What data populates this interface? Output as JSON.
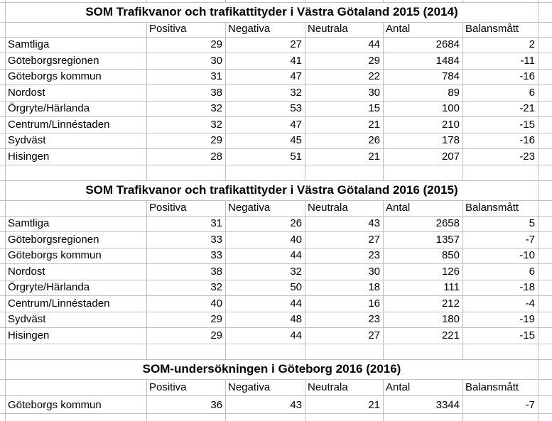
{
  "colors": {
    "background": "#ffffff",
    "gridline": "#c0c0c0",
    "text": "#000000"
  },
  "sheet": {
    "tables": [
      {
        "title": "SOM Trafikvanor och trafikattityder i Västra Götaland 2015 (2014)",
        "columns": [
          "Positiva",
          "Negativa",
          "Neutrala",
          "Antal",
          "Balansmått"
        ],
        "rows": [
          {
            "label": "Samtliga",
            "values": [
              29,
              27,
              44,
              2684,
              2
            ]
          },
          {
            "label": "Göteborgsregionen",
            "values": [
              30,
              41,
              29,
              1484,
              -11
            ]
          },
          {
            "label": "Göteborgs kommun",
            "values": [
              31,
              47,
              22,
              784,
              -16
            ]
          },
          {
            "label": "Nordost",
            "values": [
              38,
              32,
              30,
              89,
              6
            ]
          },
          {
            "label": "Örgryte/Härlanda",
            "values": [
              32,
              53,
              15,
              100,
              -21
            ]
          },
          {
            "label": "Centrum/Linnéstaden",
            "values": [
              32,
              47,
              21,
              210,
              -15
            ]
          },
          {
            "label": "Sydväst",
            "values": [
              29,
              45,
              26,
              178,
              -16
            ]
          },
          {
            "label": "Hisingen",
            "values": [
              28,
              51,
              21,
              207,
              -23
            ]
          }
        ]
      },
      {
        "title": "SOM Trafikvanor och trafikattityder i Västra Götaland 2016 (2015)",
        "columns": [
          "Positiva",
          "Negativa",
          "Neutrala",
          "Antal",
          "Balansmått"
        ],
        "rows": [
          {
            "label": "Samtliga",
            "values": [
              31,
              26,
              43,
              2658,
              5
            ]
          },
          {
            "label": "Göteborgsregionen",
            "values": [
              33,
              40,
              27,
              1357,
              -7
            ]
          },
          {
            "label": "Göteborgs kommun",
            "values": [
              33,
              44,
              23,
              850,
              -10
            ]
          },
          {
            "label": "Nordost",
            "values": [
              38,
              32,
              30,
              126,
              6
            ]
          },
          {
            "label": "Örgryte/Härlanda",
            "values": [
              32,
              50,
              18,
              111,
              -18
            ]
          },
          {
            "label": "Centrum/Linnéstaden",
            "values": [
              40,
              44,
              16,
              212,
              -4
            ]
          },
          {
            "label": "Sydväst",
            "values": [
              29,
              48,
              23,
              180,
              -19
            ]
          },
          {
            "label": "Hisingen",
            "values": [
              29,
              44,
              27,
              221,
              -15
            ]
          }
        ]
      },
      {
        "title": "SOM-undersökningen i Göteborg 2016 (2016)",
        "columns": [
          "Positiva",
          "Negativa",
          "Neutrala",
          "Antal",
          "Balansmått"
        ],
        "rows": [
          {
            "label": "Göteborgs kommun",
            "values": [
              36,
              43,
              21,
              3344,
              -7
            ]
          }
        ]
      }
    ]
  }
}
